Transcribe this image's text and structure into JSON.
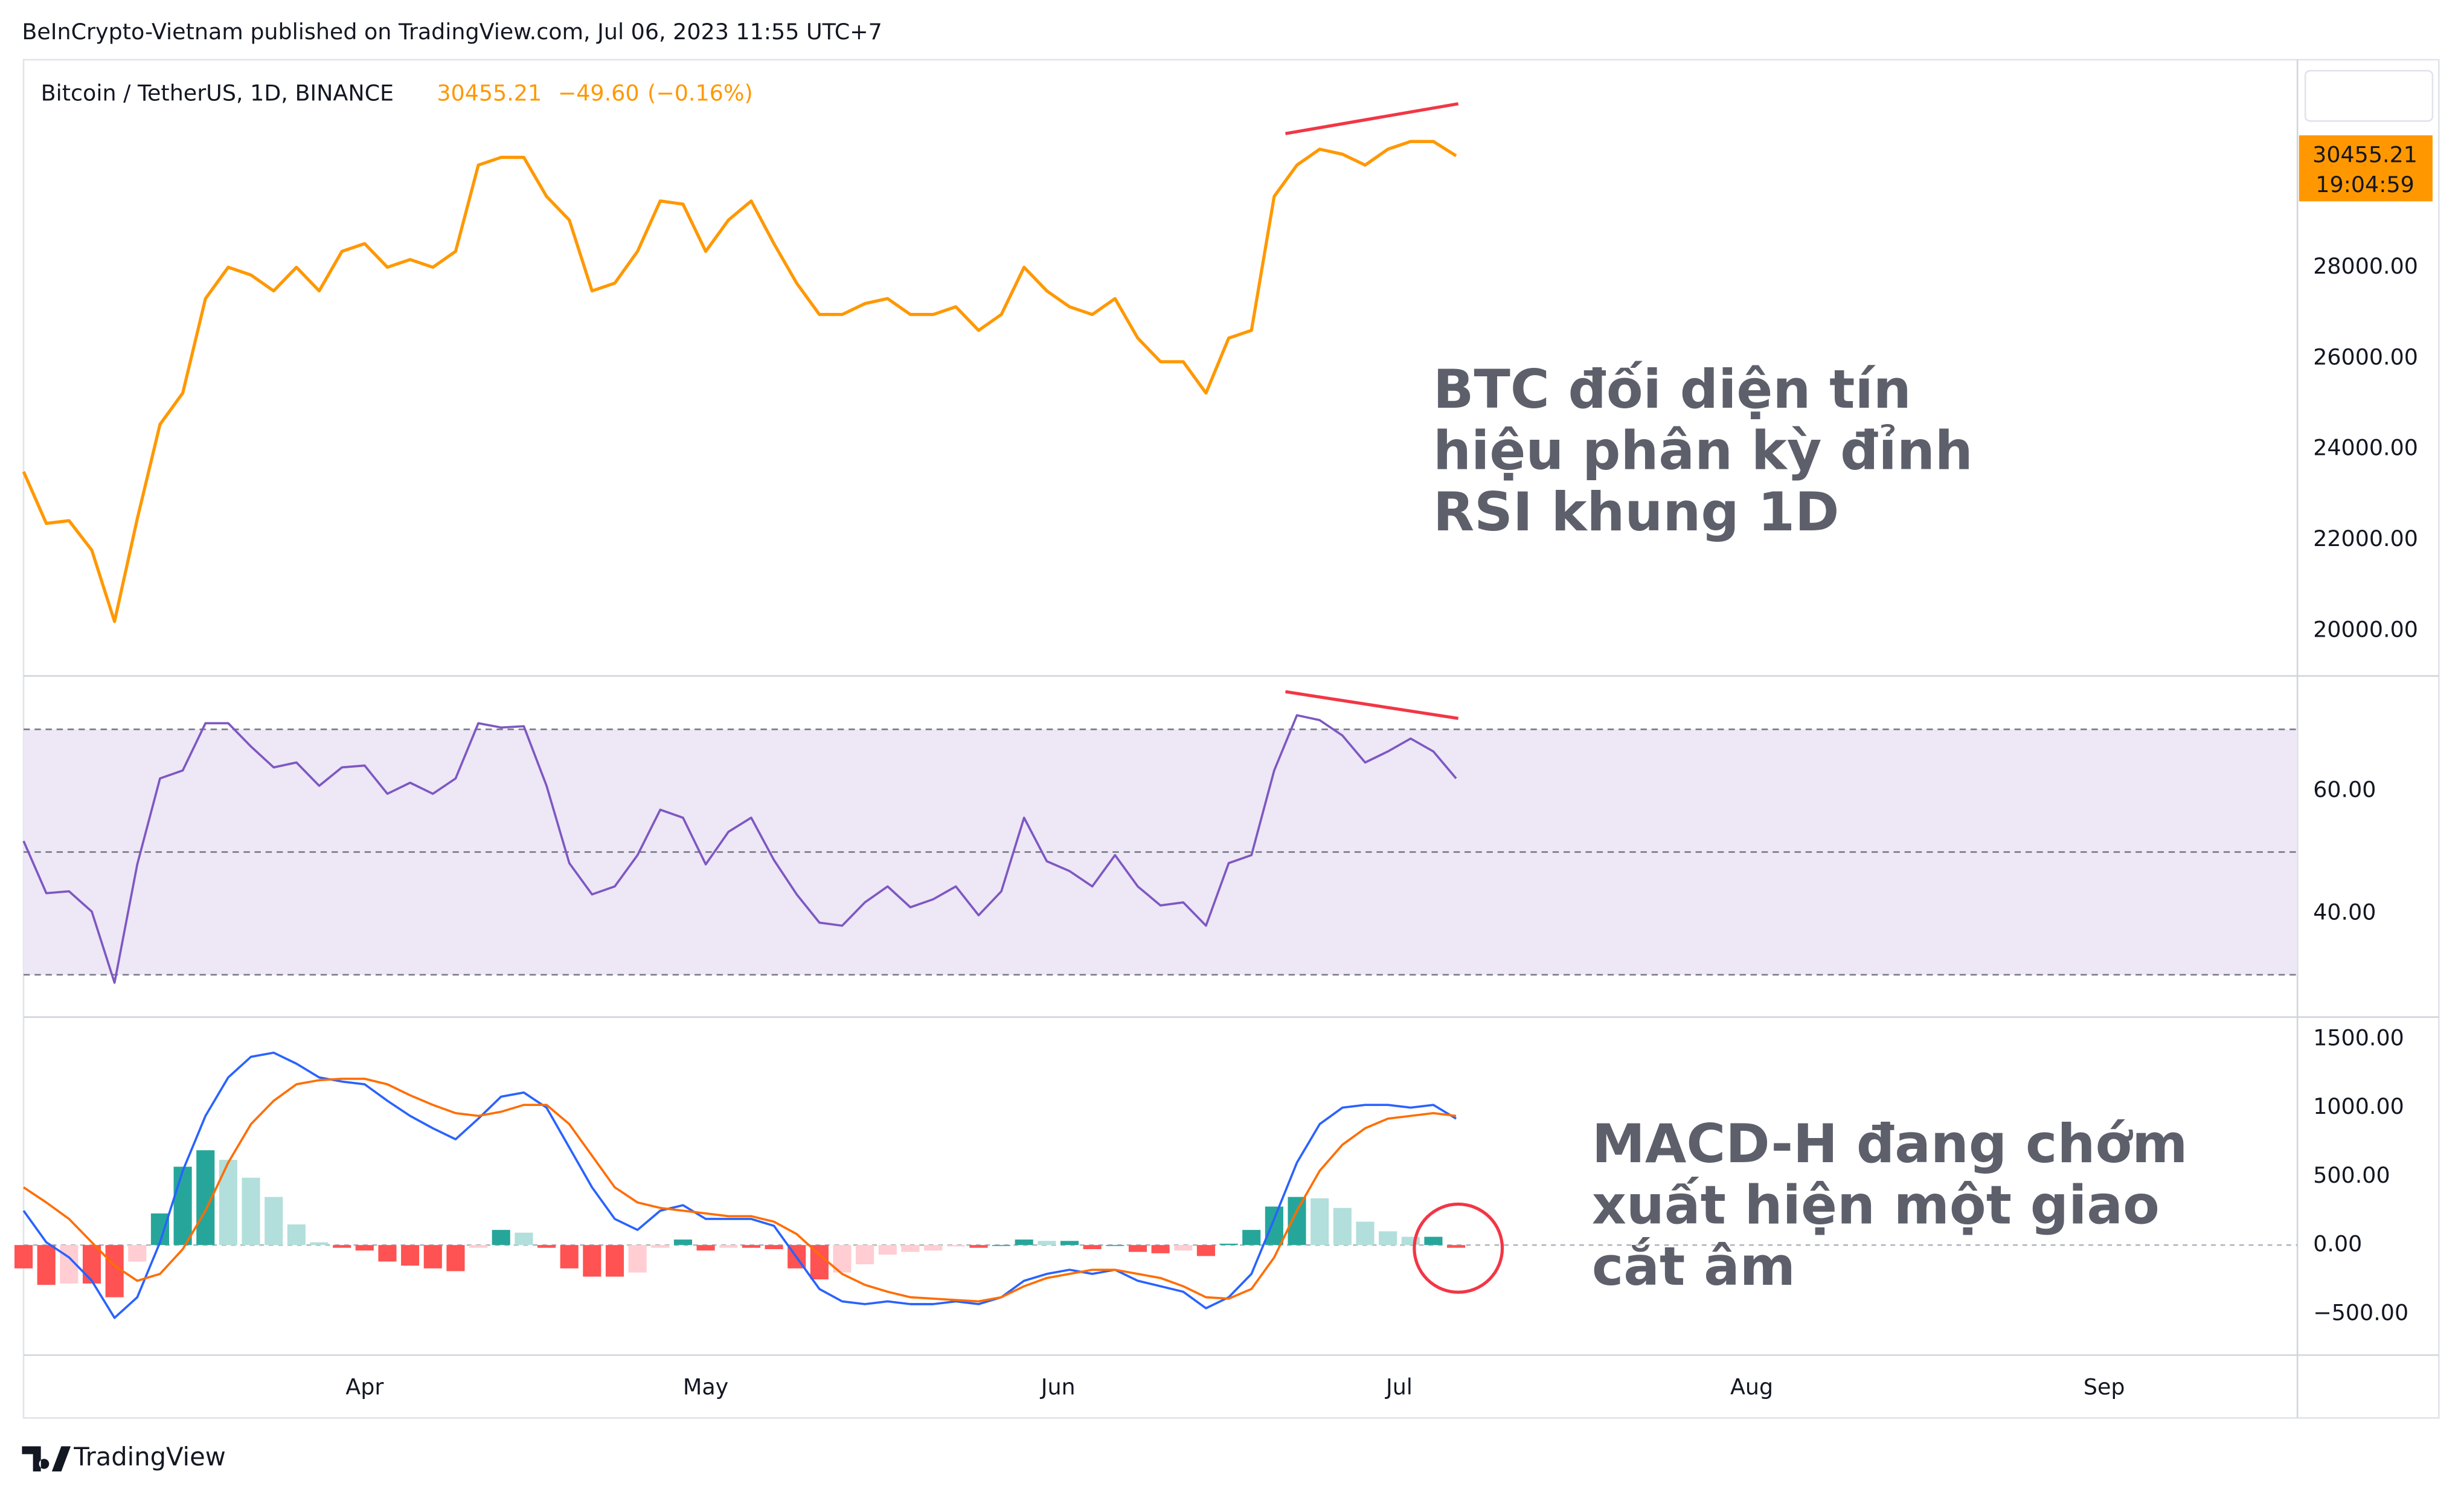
{
  "header": "BeInCrypto-Vietnam published on TradingView.com, Jul 06, 2023 11:55 UTC+7",
  "footer": "TradingView",
  "chart_data": [
    {
      "type": "line",
      "title": "Bitcoin / TetherUS, 1D, BINANCE",
      "last_price": 30455.21,
      "change": {
        "value": -49.6,
        "label": "−49.60"
      },
      "change_pct": {
        "value": -0.16,
        "label": "(−0.16%)"
      },
      "countdown": "19:04:59",
      "color": "#ff9800",
      "annotation": [
        "BTC đối diện tín",
        "hiệu phân kỳ đỉnh",
        "RSI khung 1D"
      ],
      "x": [
        0,
        2,
        4,
        6,
        8,
        10,
        12,
        14,
        16,
        18,
        20,
        22,
        24,
        26,
        28,
        30,
        32,
        34,
        36,
        38,
        40,
        42,
        44,
        46,
        48,
        50,
        52,
        54,
        56,
        58,
        60,
        62,
        64,
        66,
        68,
        70,
        72,
        74,
        76,
        78,
        80,
        82,
        84,
        86,
        88,
        90,
        92,
        94,
        96,
        98,
        100,
        102,
        104,
        106,
        108,
        110,
        112,
        114,
        116,
        118,
        120,
        122,
        124,
        126
      ],
      "values": [
        23500,
        22360,
        22420,
        21770,
        20200,
        22460,
        24540,
        25230,
        27310,
        28000,
        27830,
        27480,
        28000,
        27480,
        28350,
        28520,
        28000,
        28170,
        28000,
        28350,
        30250,
        30420,
        30420,
        29560,
        29040,
        27480,
        27650,
        28350,
        29460,
        29390,
        28350,
        29040,
        29460,
        28520,
        27650,
        26960,
        26960,
        27200,
        27310,
        26960,
        26960,
        27130,
        26610,
        26960,
        28000,
        27480,
        27130,
        26960,
        27310,
        26440,
        25920,
        25920,
        25230,
        26440,
        26610,
        29560,
        30250,
        30600,
        30490,
        30250,
        30600,
        30770,
        30770,
        30455
      ],
      "xlim": [
        0,
        200
      ],
      "ylim": [
        19000,
        32570
      ],
      "yticks": [
        {
          "value": 20000,
          "label": "20000.00"
        },
        {
          "value": 22000,
          "label": "22000.00"
        },
        {
          "value": 24000,
          "label": "24000.00"
        },
        {
          "value": 26000,
          "label": "26000.00"
        },
        {
          "value": 28000,
          "label": "28000.00"
        }
      ]
    },
    {
      "type": "line",
      "color": "#7e57c2",
      "x": [
        0,
        2,
        4,
        6,
        8,
        10,
        12,
        14,
        16,
        18,
        20,
        22,
        24,
        26,
        28,
        30,
        32,
        34,
        36,
        38,
        40,
        42,
        44,
        46,
        48,
        50,
        52,
        54,
        56,
        58,
        60,
        62,
        64,
        66,
        68,
        70,
        72,
        74,
        76,
        78,
        80,
        82,
        84,
        86,
        88,
        90,
        92,
        94,
        96,
        98,
        100,
        102,
        104,
        106,
        108,
        110,
        112,
        114,
        116,
        118,
        120,
        122,
        124,
        126
      ],
      "values": [
        51.8,
        43.3,
        43.6,
        40.3,
        28.7,
        48,
        62,
        63.3,
        71,
        71,
        67.2,
        63.8,
        64.6,
        60.8,
        63.8,
        64.1,
        59.5,
        61.3,
        59.5,
        62,
        71,
        70.3,
        70.5,
        60.8,
        48.2,
        43.1,
        44.4,
        49.5,
        56.9,
        55.6,
        48,
        53.3,
        55.6,
        48.7,
        43.1,
        38.5,
        38,
        41.8,
        44.4,
        41,
        42.3,
        44.4,
        39.7,
        43.6,
        55.6,
        48.5,
        46.9,
        44.4,
        49.5,
        44.4,
        41.3,
        41.8,
        38,
        48.2,
        49.5,
        63.3,
        72.3,
        71.5,
        69,
        64.6,
        66.4,
        68.5,
        66.4,
        62
      ],
      "xlim": [
        0,
        200
      ],
      "ylim": [
        23.1,
        78.7
      ],
      "band": [
        30,
        70
      ],
      "band_color": "#ede7f6",
      "hlines": [
        30,
        50,
        70
      ],
      "yticks": [
        {
          "value": 40,
          "label": "40.00"
        },
        {
          "value": 60,
          "label": "60.00"
        }
      ]
    },
    {
      "type": "macd",
      "annotation": [
        "MACD-H đang chớm",
        "xuất hiện một giao",
        "cắt âm"
      ],
      "x": [
        0,
        2,
        4,
        6,
        8,
        10,
        12,
        14,
        16,
        18,
        20,
        22,
        24,
        26,
        28,
        30,
        32,
        34,
        36,
        38,
        40,
        42,
        44,
        46,
        48,
        50,
        52,
        54,
        56,
        58,
        60,
        62,
        64,
        66,
        68,
        70,
        72,
        74,
        76,
        78,
        80,
        82,
        84,
        86,
        88,
        90,
        92,
        94,
        96,
        98,
        100,
        102,
        104,
        106,
        108,
        110,
        112,
        114,
        116,
        118,
        120,
        122,
        124,
        126
      ],
      "series": [
        {
          "color": "#2962ff",
          "values": [
            250,
            20,
            -90,
            -260,
            -530,
            -380,
            20,
            540,
            940,
            1220,
            1370,
            1400,
            1320,
            1220,
            1190,
            1170,
            1050,
            940,
            850,
            770,
            920,
            1080,
            1110,
            1000,
            710,
            420,
            190,
            110,
            250,
            290,
            190,
            190,
            190,
            140,
            -90,
            -320,
            -410,
            -430,
            -410,
            -430,
            -430,
            -410,
            -430,
            -380,
            -260,
            -210,
            -180,
            -210,
            -180,
            -260,
            -300,
            -340,
            -460,
            -380,
            -210,
            190,
            600,
            880,
            1000,
            1020,
            1020,
            1000,
            1020,
            920
          ]
        },
        {
          "color": "#ff6d00",
          "values": [
            420,
            310,
            190,
            20,
            -150,
            -260,
            -210,
            -30,
            250,
            600,
            880,
            1050,
            1170,
            1200,
            1210,
            1210,
            1170,
            1090,
            1020,
            960,
            940,
            970,
            1020,
            1020,
            880,
            650,
            420,
            310,
            270,
            250,
            230,
            210,
            210,
            170,
            80,
            -70,
            -210,
            -290,
            -340,
            -380,
            -390,
            -400,
            -410,
            -380,
            -300,
            -240,
            -210,
            -180,
            -180,
            -210,
            -240,
            -300,
            -380,
            -390,
            -320,
            -90,
            250,
            540,
            730,
            850,
            920,
            940,
            960,
            940
          ]
        }
      ],
      "histogram": {
        "colors": [
          "#26a69a",
          "#b2dfdb",
          "#ffcdd2",
          "#ff5252"
        ],
        "values": [
          -170,
          -290,
          -280,
          -280,
          -380,
          -120,
          230,
          570,
          690,
          620,
          490,
          350,
          150,
          20,
          -20,
          -40,
          -120,
          -150,
          -170,
          -190,
          -20,
          110,
          90,
          -20,
          -170,
          -230,
          -230,
          -200,
          -20,
          40,
          -40,
          -20,
          -20,
          -30,
          -170,
          -250,
          -200,
          -140,
          -70,
          -50,
          -40,
          -10,
          -20,
          0,
          40,
          30,
          30,
          -30,
          0,
          -50,
          -60,
          -40,
          -80,
          10,
          110,
          280,
          350,
          340,
          270,
          170,
          100,
          60,
          60,
          -20
        ]
      },
      "zero_line": true,
      "xlim": [
        0,
        200
      ],
      "ylim": [
        -801,
        1659
      ],
      "yticks": [
        {
          "value": -500,
          "label": "−500.00"
        },
        {
          "value": 0,
          "label": "0.00"
        },
        {
          "value": 500,
          "label": "500.00"
        },
        {
          "value": 1000,
          "label": "1000.00"
        },
        {
          "value": 1500,
          "label": "1500.00"
        }
      ],
      "xticks": [
        {
          "value": 30,
          "label": "Apr"
        },
        {
          "value": 60,
          "label": "May"
        },
        {
          "value": 91,
          "label": "Jun"
        },
        {
          "value": 121,
          "label": "Jul"
        },
        {
          "value": 152,
          "label": "Aug"
        },
        {
          "value": 183,
          "label": "Sep"
        }
      ]
    }
  ]
}
